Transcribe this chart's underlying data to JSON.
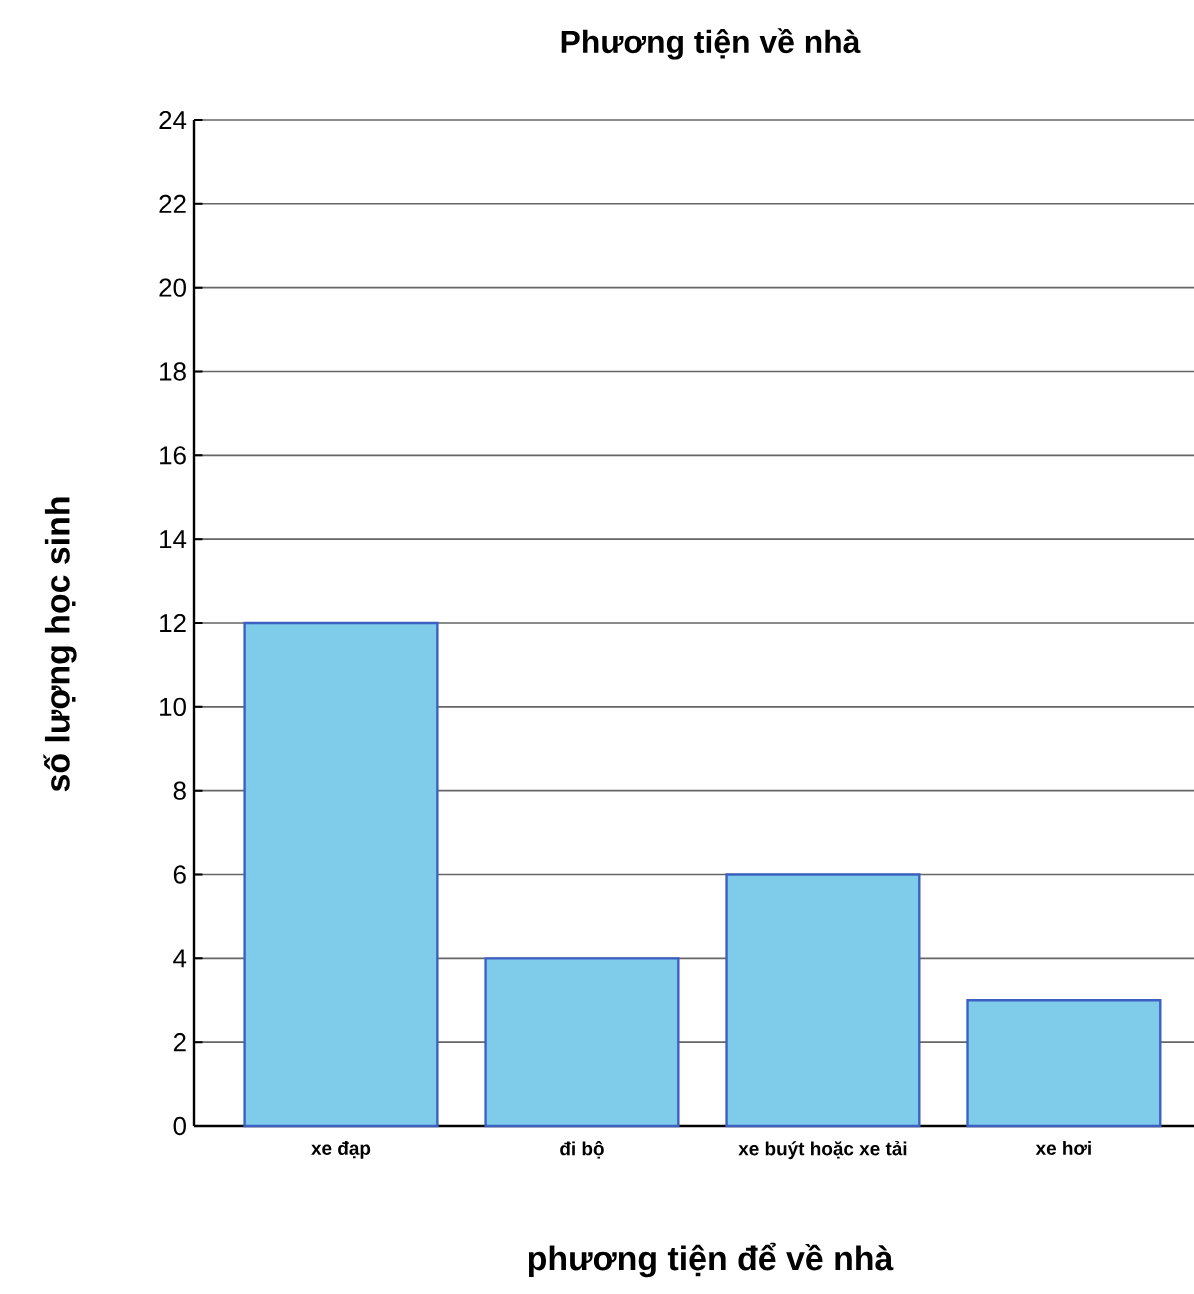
{
  "chart_data": {
    "type": "bar",
    "title": "Phương tiện về nhà",
    "xlabel": "phương tiện để về nhà",
    "ylabel": "số lượng học sinh",
    "categories": [
      "xe đạp",
      "đi bộ",
      "xe buýt hoặc xe tải",
      "xe hơi"
    ],
    "values": [
      12,
      4,
      6,
      3
    ],
    "color": "#7ecbea",
    "ylim": [
      0,
      24
    ],
    "yticks": [
      0,
      2,
      4,
      6,
      8,
      10,
      12,
      14,
      16,
      18,
      20,
      22,
      24
    ],
    "grid": "y"
  }
}
